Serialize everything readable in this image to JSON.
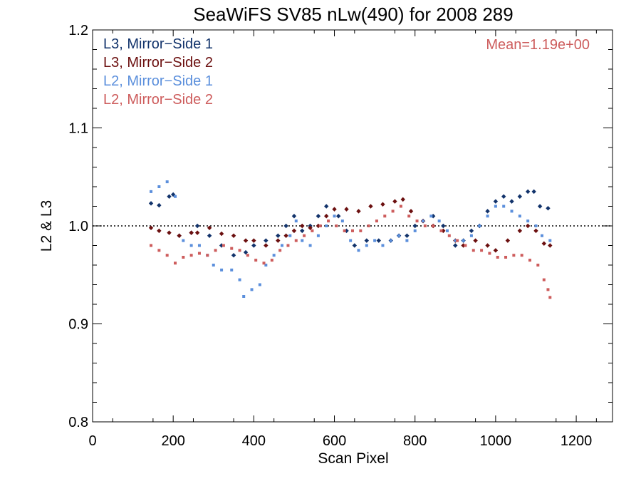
{
  "chart_data": {
    "type": "scatter",
    "title": "SeaWiFS SV85 nLw(490) for 2008 289",
    "xlabel": "Scan Pixel",
    "ylabel": "L2 & L3",
    "xlim": [
      0,
      1290
    ],
    "ylim": [
      0.8,
      1.2
    ],
    "xticks": [
      0,
      200,
      400,
      600,
      800,
      1000,
      1200
    ],
    "yticks": [
      0.8,
      0.9,
      1.0,
      1.1,
      1.2
    ],
    "xtick_labels": [
      "0",
      "200",
      "400",
      "600",
      "800",
      "1000",
      "1200"
    ],
    "ytick_labels": [
      "0.8",
      "0.9",
      "1.0",
      "1.1",
      "1.2"
    ],
    "reference_line": 1.0,
    "reference_line_style": "dotted",
    "annotation": "Mean=1.19e+00",
    "annotation_color": "#cd5c5c",
    "legend_position": "top-left",
    "grid": false,
    "series": [
      {
        "name": "L3, Mirror−Side 1",
        "color": "#12336b",
        "marker": "diamond",
        "points": [
          [
            145,
            1.023
          ],
          [
            165,
            1.021
          ],
          [
            190,
            1.03
          ],
          [
            200,
            1.032
          ],
          [
            215,
            0.99
          ],
          [
            245,
            0.993
          ],
          [
            260,
            1.0
          ],
          [
            290,
            0.99
          ],
          [
            320,
            0.98
          ],
          [
            350,
            0.97
          ],
          [
            380,
            0.973
          ],
          [
            400,
            0.98
          ],
          [
            430,
            0.985
          ],
          [
            460,
            0.99
          ],
          [
            480,
            1.0
          ],
          [
            500,
            1.01
          ],
          [
            520,
            0.995
          ],
          [
            540,
            1.0
          ],
          [
            560,
            1.01
          ],
          [
            580,
            1.02
          ],
          [
            610,
            1.01
          ],
          [
            630,
            0.995
          ],
          [
            650,
            0.98
          ],
          [
            680,
            0.985
          ],
          [
            710,
            0.985
          ],
          [
            740,
            0.985
          ],
          [
            760,
            0.99
          ],
          [
            780,
            0.99
          ],
          [
            800,
            1.0
          ],
          [
            820,
            1.005
          ],
          [
            845,
            1.01
          ],
          [
            870,
            1.0
          ],
          [
            900,
            0.98
          ],
          [
            920,
            0.985
          ],
          [
            940,
            0.995
          ],
          [
            960,
            1.0
          ],
          [
            980,
            1.015
          ],
          [
            1000,
            1.025
          ],
          [
            1020,
            1.03
          ],
          [
            1040,
            1.025
          ],
          [
            1060,
            1.03
          ],
          [
            1080,
            1.035
          ],
          [
            1095,
            1.035
          ],
          [
            1110,
            1.02
          ],
          [
            1130,
            1.018
          ]
        ]
      },
      {
        "name": "L3, Mirror−Side 2",
        "color": "#6b0f0f",
        "marker": "diamond",
        "points": [
          [
            145,
            0.998
          ],
          [
            165,
            0.995
          ],
          [
            190,
            0.993
          ],
          [
            215,
            0.99
          ],
          [
            245,
            0.993
          ],
          [
            260,
            0.993
          ],
          [
            290,
            0.998
          ],
          [
            320,
            0.992
          ],
          [
            350,
            0.99
          ],
          [
            380,
            0.985
          ],
          [
            400,
            0.985
          ],
          [
            430,
            0.98
          ],
          [
            460,
            0.985
          ],
          [
            480,
            0.99
          ],
          [
            500,
            0.995
          ],
          [
            520,
            1.0
          ],
          [
            540,
            0.998
          ],
          [
            560,
            1.0
          ],
          [
            580,
            1.01
          ],
          [
            600,
            1.017
          ],
          [
            630,
            1.017
          ],
          [
            660,
            1.015
          ],
          [
            690,
            1.02
          ],
          [
            720,
            1.022
          ],
          [
            750,
            1.025
          ],
          [
            770,
            1.027
          ],
          [
            790,
            1.015
          ],
          [
            820,
            1.005
          ],
          [
            845,
            1.0
          ],
          [
            870,
            0.995
          ],
          [
            900,
            0.985
          ],
          [
            920,
            0.98
          ],
          [
            950,
            0.985
          ],
          [
            980,
            0.98
          ],
          [
            1000,
            0.975
          ],
          [
            1030,
            0.985
          ],
          [
            1060,
            0.995
          ],
          [
            1080,
            1.0
          ],
          [
            1100,
            0.995
          ],
          [
            1120,
            0.982
          ],
          [
            1135,
            0.98
          ]
        ]
      },
      {
        "name": "L2, Mirror−Side 1",
        "color": "#5b8fdc",
        "marker": "square",
        "points": [
          [
            145,
            1.035
          ],
          [
            165,
            1.04
          ],
          [
            185,
            1.045
          ],
          [
            205,
            1.03
          ],
          [
            225,
            0.985
          ],
          [
            245,
            0.98
          ],
          [
            265,
            0.98
          ],
          [
            285,
            0.97
          ],
          [
            300,
            0.96
          ],
          [
            320,
            0.955
          ],
          [
            345,
            0.955
          ],
          [
            365,
            0.945
          ],
          [
            375,
            0.928
          ],
          [
            395,
            0.935
          ],
          [
            415,
            0.94
          ],
          [
            430,
            0.96
          ],
          [
            450,
            0.97
          ],
          [
            470,
            0.98
          ],
          [
            490,
            0.99
          ],
          [
            505,
            1.005
          ],
          [
            520,
            0.985
          ],
          [
            540,
            0.98
          ],
          [
            560,
            0.99
          ],
          [
            580,
            1.0
          ],
          [
            600,
            1.01
          ],
          [
            620,
            1.005
          ],
          [
            640,
            0.985
          ],
          [
            660,
            0.975
          ],
          [
            680,
            0.98
          ],
          [
            700,
            0.985
          ],
          [
            720,
            0.98
          ],
          [
            740,
            0.985
          ],
          [
            760,
            0.99
          ],
          [
            780,
            0.985
          ],
          [
            800,
            0.995
          ],
          [
            820,
            1.005
          ],
          [
            840,
            1.01
          ],
          [
            860,
            1.005
          ],
          [
            880,
            0.995
          ],
          [
            900,
            0.985
          ],
          [
            920,
            0.985
          ],
          [
            940,
            0.99
          ],
          [
            960,
            1.0
          ],
          [
            980,
            1.01
          ],
          [
            1000,
            1.02
          ],
          [
            1020,
            1.02
          ],
          [
            1040,
            1.015
          ],
          [
            1060,
            1.01
          ],
          [
            1080,
            1.005
          ],
          [
            1100,
            1.0
          ],
          [
            1115,
            0.99
          ],
          [
            1135,
            0.985
          ]
        ]
      },
      {
        "name": "L2, Mirror−Side 2",
        "color": "#cd5c5c",
        "marker": "square",
        "points": [
          [
            145,
            0.98
          ],
          [
            165,
            0.975
          ],
          [
            185,
            0.97
          ],
          [
            205,
            0.962
          ],
          [
            225,
            0.968
          ],
          [
            245,
            0.97
          ],
          [
            265,
            0.972
          ],
          [
            285,
            0.97
          ],
          [
            305,
            0.975
          ],
          [
            325,
            0.98
          ],
          [
            345,
            0.977
          ],
          [
            365,
            0.975
          ],
          [
            385,
            0.97
          ],
          [
            405,
            0.965
          ],
          [
            425,
            0.962
          ],
          [
            445,
            0.965
          ],
          [
            465,
            0.975
          ],
          [
            485,
            0.98
          ],
          [
            505,
            0.985
          ],
          [
            525,
            0.99
          ],
          [
            545,
            0.995
          ],
          [
            565,
            1.0
          ],
          [
            585,
            1.005
          ],
          [
            605,
            1.0
          ],
          [
            625,
            0.995
          ],
          [
            645,
            0.995
          ],
          [
            665,
            0.995
          ],
          [
            685,
            1.0
          ],
          [
            705,
            1.005
          ],
          [
            725,
            1.01
          ],
          [
            745,
            1.015
          ],
          [
            765,
            1.02
          ],
          [
            785,
            1.01
          ],
          [
            805,
            1.005
          ],
          [
            825,
            1.0
          ],
          [
            845,
            1.0
          ],
          [
            865,
            0.995
          ],
          [
            885,
            0.99
          ],
          [
            905,
            0.985
          ],
          [
            925,
            0.98
          ],
          [
            945,
            0.975
          ],
          [
            965,
            0.975
          ],
          [
            985,
            0.972
          ],
          [
            1005,
            0.968
          ],
          [
            1025,
            0.968
          ],
          [
            1045,
            0.97
          ],
          [
            1065,
            0.97
          ],
          [
            1085,
            0.965
          ],
          [
            1105,
            0.96
          ],
          [
            1120,
            0.945
          ],
          [
            1130,
            0.935
          ],
          [
            1135,
            0.927
          ]
        ]
      }
    ]
  }
}
